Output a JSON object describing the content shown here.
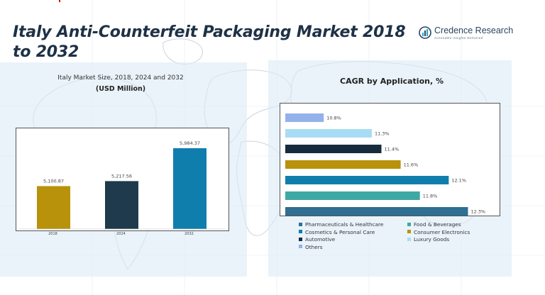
{
  "header": {
    "title": "Italy Anti-Counterfeit Packaging Market 2018 to 2032",
    "brand_name": "Credence Research",
    "brand_tagline": "Actionable Insights Delivered",
    "brand_color": "#2a4660",
    "title_color": "#1e3146"
  },
  "left_panel": {
    "title": "Italy Market Size, 2018, 2024 and 2032",
    "subtitle": "(USD Million)"
  },
  "right_panel": {
    "title": "CAGR by Application, %"
  },
  "chart_data": [
    {
      "type": "bar",
      "title": "Italy Market Size, 2018, 2024 and 2032",
      "subtitle": "(USD Million)",
      "categories": [
        "2018",
        "2024",
        "2032"
      ],
      "values": [
        5100.87,
        5217.56,
        5984.37
      ],
      "value_labels": [
        "5,100.87",
        "5,217.56",
        "5,984.37"
      ],
      "colors": [
        "#b8920a",
        "#1e3a4c",
        "#0f7ead"
      ],
      "grid": false,
      "legend": "none"
    },
    {
      "type": "bar",
      "orientation": "horizontal",
      "title": "CAGR by Application, %",
      "categories": [
        "Others",
        "Luxury Goods",
        "Automotive",
        "Consumer Electronics",
        "Cosmetics & Personal Care",
        "Food & Beverages",
        "Pharmaceuticals & Healthcare"
      ],
      "values": [
        10.8,
        11.3,
        11.4,
        11.6,
        12.1,
        11.8,
        12.3
      ],
      "value_labels": [
        "10.8%",
        "11.3%",
        "11.4%",
        "11.6%",
        "12.1%",
        "11.8%",
        "12.3%"
      ],
      "colors": [
        "#93b2ec",
        "#a8dcf4",
        "#162c3c",
        "#b8920a",
        "#0f7ead",
        "#3ea8a4",
        "#2e6f92"
      ],
      "xlim": [
        10.4,
        12.4
      ],
      "grid": false,
      "legend": "bottom",
      "legend_items": [
        {
          "label": "Pharmaceuticals & Healthcare",
          "color": "#2e6f92"
        },
        {
          "label": "Food & Beverages",
          "color": "#3ea8a4"
        },
        {
          "label": "Cosmetics & Personal Care",
          "color": "#0f7ead"
        },
        {
          "label": "Consumer Electronics",
          "color": "#b8920a"
        },
        {
          "label": "Automotive",
          "color": "#162c3c"
        },
        {
          "label": "Luxury Goods",
          "color": "#a8dcf4"
        },
        {
          "label": "Others",
          "color": "#93b2ec"
        }
      ]
    }
  ]
}
